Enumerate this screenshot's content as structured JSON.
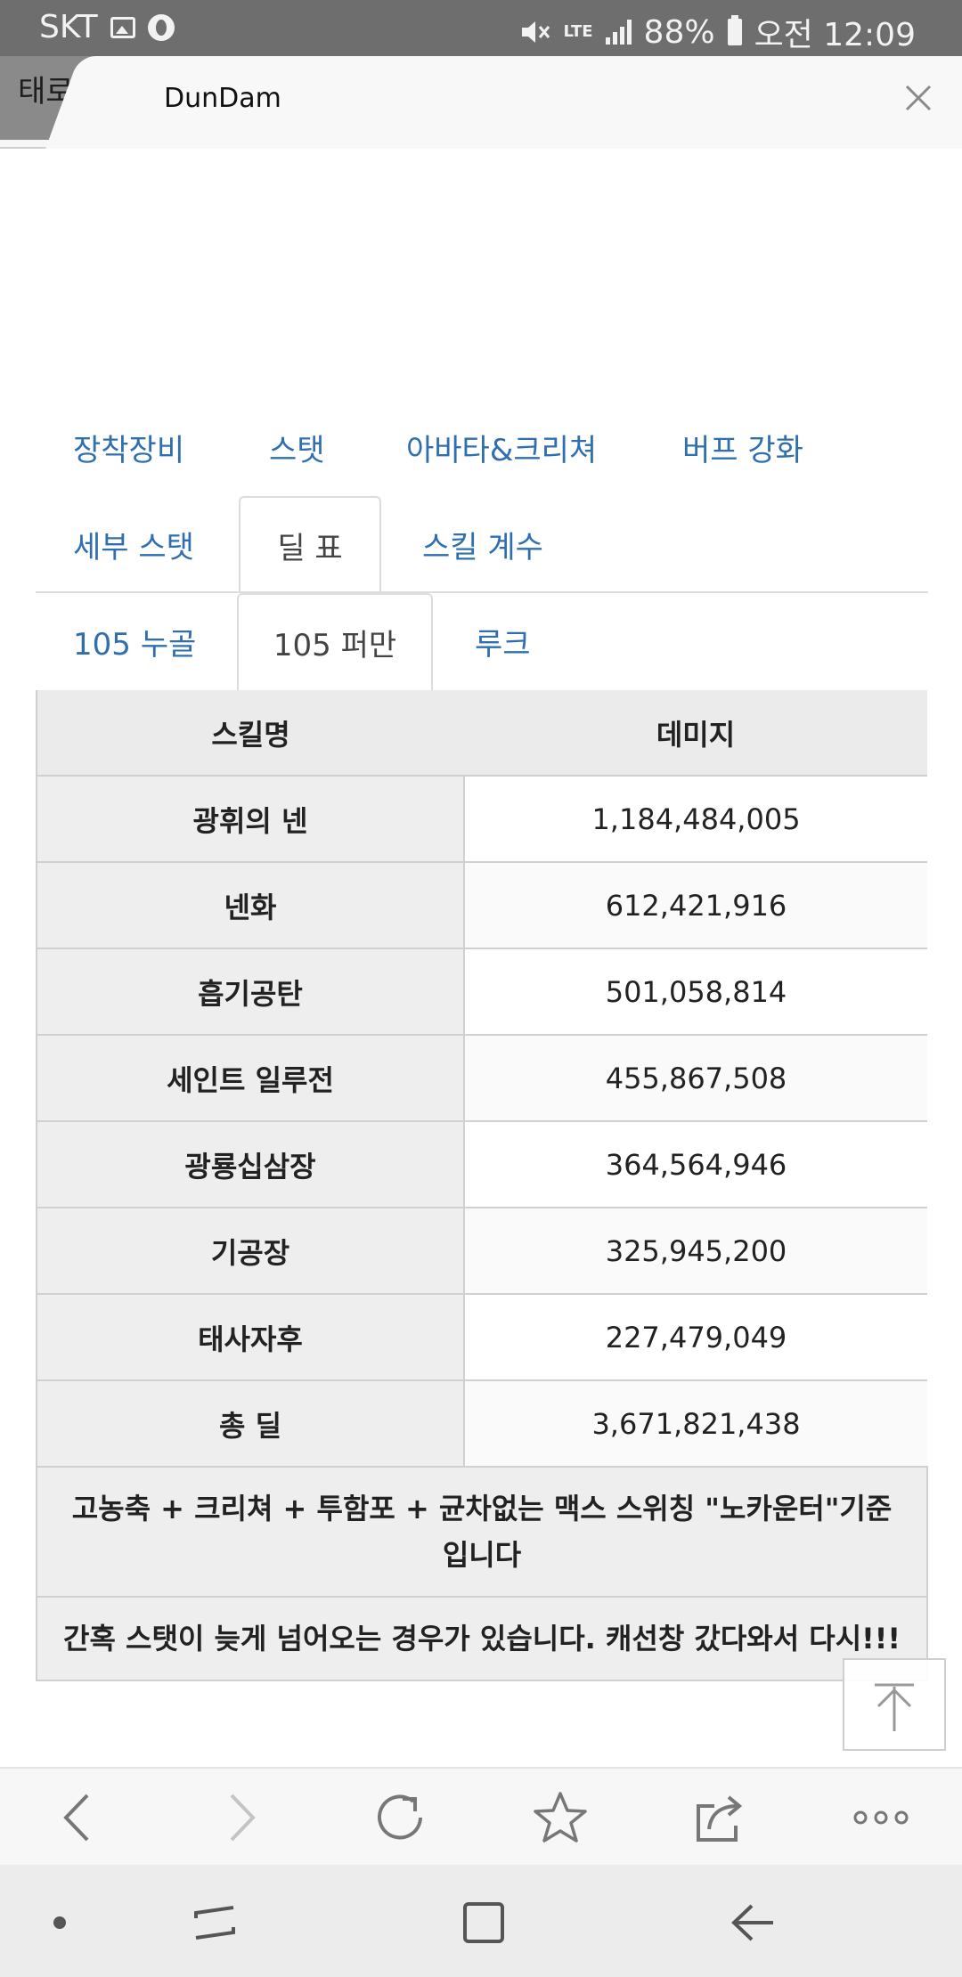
{
  "status_bar": {
    "carrier": "SKT",
    "icons": [
      "image-icon",
      "globe-icon",
      "mute-icon",
      "lte-icon",
      "signal-icon",
      "battery-icon"
    ],
    "network": "LTE",
    "battery": "88%",
    "time": "오전 12:09"
  },
  "browser": {
    "tab_inactive_label": "태로 표",
    "tab_active_title": "DunDam"
  },
  "nav": {
    "row1": [
      "장착장비",
      "스탯",
      "아바타&크리쳐",
      "버프 강화"
    ],
    "row2_left": "세부 스탯",
    "row2_active": "딜 표",
    "row2_right": "스킬 계수",
    "sub_left": "105 누골",
    "sub_active": "105 퍼만",
    "sub_right": "루크"
  },
  "table": {
    "headers": [
      "스킬명",
      "데미지"
    ],
    "rows": [
      {
        "skill": "광휘의 넨",
        "damage": "1,184,484,005"
      },
      {
        "skill": "넨화",
        "damage": "612,421,916"
      },
      {
        "skill": "흡기공탄",
        "damage": "501,058,814"
      },
      {
        "skill": "세인트 일루전",
        "damage": "455,867,508"
      },
      {
        "skill": "광룡십삼장",
        "damage": "364,564,946"
      },
      {
        "skill": "기공장",
        "damage": "325,945,200"
      },
      {
        "skill": "태사자후",
        "damage": "227,479,049"
      },
      {
        "skill": "총 딜",
        "damage": "3,671,821,438"
      }
    ],
    "note1": "고농축 + 크리쳐 + 투함포 + 균차없는 맥스 스위칭 \"노카운터\"기준 입니다",
    "note2": "간혹 스탯이 늦게 넘어오는 경우가 있습니다. 캐선창 갔다와서 다시!!!"
  }
}
